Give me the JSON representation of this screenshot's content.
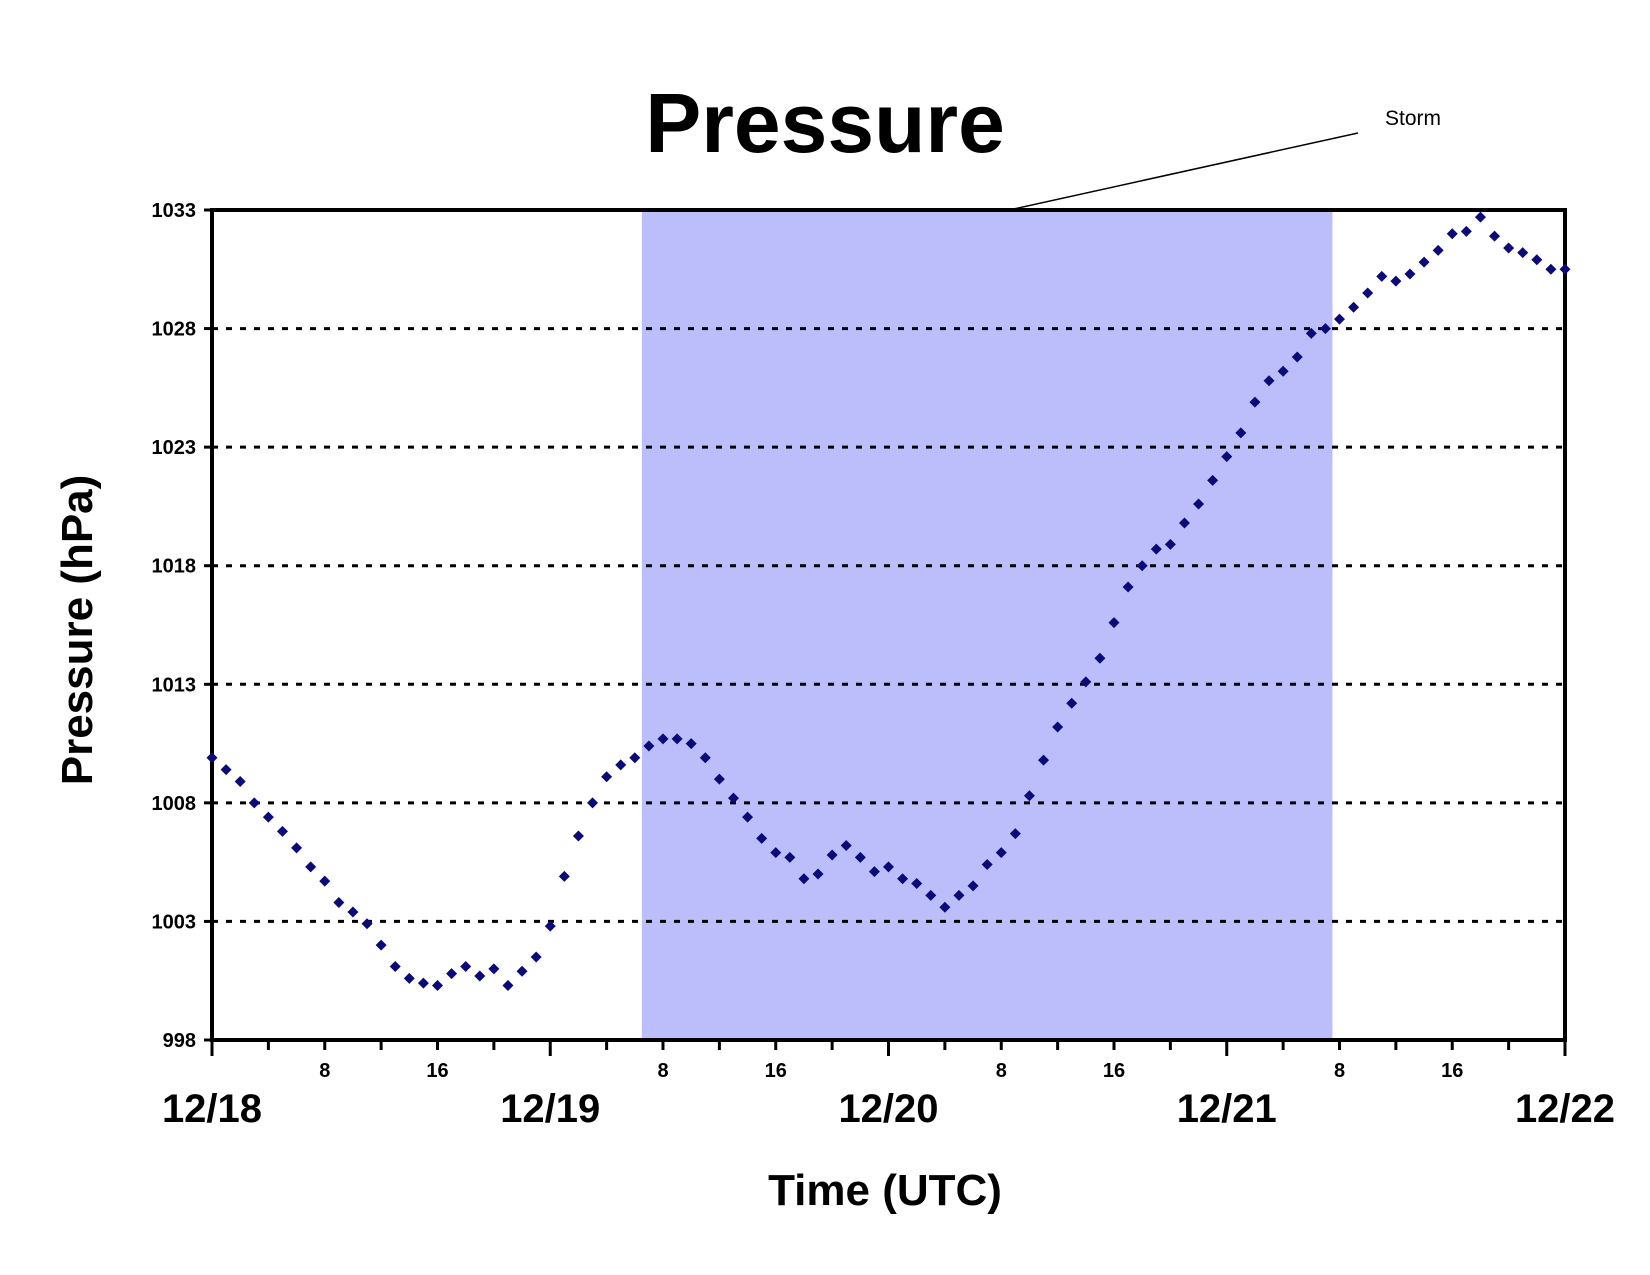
{
  "chart_data": {
    "type": "scatter",
    "title": "Pressure",
    "xlabel": "Time (UTC)",
    "ylabel": "Pressure (hPa)",
    "ylim": [
      998,
      1033
    ],
    "yticks": [
      "998",
      "1003",
      "1008",
      "1013",
      "1018",
      "1023",
      "1028",
      "1033"
    ],
    "xlim_hours": [
      0,
      96
    ],
    "x_major_ticks": [
      "12/18",
      "12/19",
      "12/20",
      "12/21",
      "12/22"
    ],
    "x_minor_tick_labels": [
      "8",
      "16"
    ],
    "gridlines": "horizontal dotted",
    "marker_color": "#0a0a78",
    "shade_color": "#bcbdfb",
    "shaded_region": {
      "label": "Storm",
      "x_start_hours": 30.5,
      "x_end_hours": 79.5
    },
    "x_hours_from_12_18_00UTC": [
      0,
      1,
      2,
      3,
      4,
      5,
      6,
      7,
      8,
      9,
      10,
      11,
      12,
      13,
      14,
      15,
      16,
      17,
      18,
      19,
      20,
      21,
      22,
      23,
      24,
      25,
      26,
      27,
      28,
      29,
      30,
      31,
      32,
      33,
      34,
      35,
      36,
      37,
      38,
      39,
      40,
      41,
      42,
      43,
      44,
      45,
      46,
      47,
      48,
      49,
      50,
      51,
      52,
      53,
      54,
      55,
      56,
      57,
      58,
      59,
      60,
      61,
      62,
      63,
      64,
      65,
      66,
      67,
      68,
      69,
      70,
      71,
      72,
      73,
      74,
      75,
      76,
      77,
      78,
      79,
      80,
      81,
      82,
      83,
      84,
      85,
      86,
      87,
      88,
      89,
      90,
      91,
      92,
      93,
      94,
      95,
      96
    ],
    "y_pressure_hpa": [
      1009.9,
      1009.4,
      1008.9,
      1008.0,
      1007.4,
      1006.8,
      1006.1,
      1005.3,
      1004.7,
      1003.8,
      1003.4,
      1002.9,
      1002.0,
      1001.1,
      1000.6,
      1000.4,
      1000.3,
      1000.8,
      1001.1,
      1000.7,
      1001.0,
      1000.3,
      1000.9,
      1001.5,
      1002.8,
      1004.9,
      1006.6,
      1008.0,
      1009.1,
      1009.6,
      1009.9,
      1010.4,
      1010.7,
      1010.7,
      1010.5,
      1009.9,
      1009.0,
      1008.2,
      1007.4,
      1006.5,
      1005.9,
      1005.7,
      1004.8,
      1005.0,
      1005.8,
      1006.2,
      1005.7,
      1005.1,
      1005.3,
      1004.8,
      1004.6,
      1004.1,
      1003.6,
      1004.1,
      1004.5,
      1005.4,
      1005.9,
      1006.7,
      1008.3,
      1009.8,
      1011.2,
      1012.2,
      1013.1,
      1014.1,
      1015.6,
      1017.1,
      1018.0,
      1018.7,
      1018.9,
      1019.8,
      1020.6,
      1021.6,
      1022.6,
      1023.6,
      1024.9,
      1025.8,
      1026.2,
      1026.8,
      1027.8,
      1028.0,
      1028.4,
      1028.9,
      1029.5,
      1030.2,
      1030.0,
      1030.3,
      1030.8,
      1031.3,
      1032.0,
      1032.1,
      1032.7,
      1031.9,
      1031.4,
      1031.2,
      1030.9,
      1030.5,
      1030.5
    ]
  }
}
